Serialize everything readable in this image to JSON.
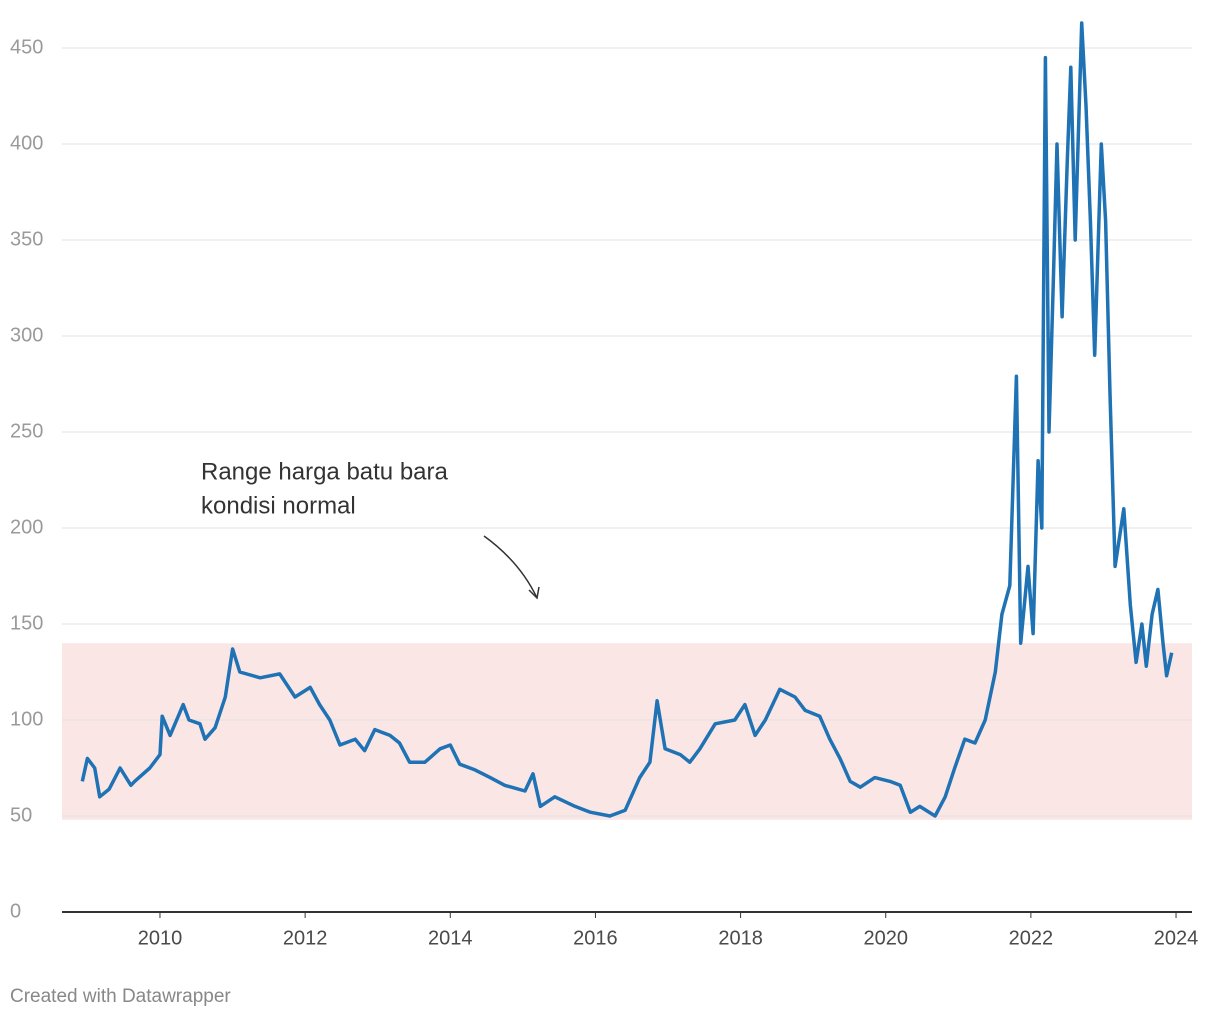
{
  "chart_data": {
    "type": "line",
    "annotation": [
      "Range harga batu bara",
      "kondisi normal"
    ],
    "footer": "Created with Datawrapper",
    "x": [
      2008.93,
      2009.0,
      2009.1,
      2009.17,
      2009.3,
      2009.45,
      2009.6,
      2009.65,
      2009.86,
      2010.0,
      2010.03,
      2010.14,
      2010.32,
      2010.4,
      2010.55,
      2010.62,
      2010.76,
      2010.9,
      2011.0,
      2011.1,
      2011.38,
      2011.65,
      2011.86,
      2012.07,
      2012.2,
      2012.34,
      2012.48,
      2012.69,
      2012.82,
      2012.96,
      2013.17,
      2013.3,
      2013.44,
      2013.65,
      2013.86,
      2014.0,
      2014.13,
      2014.34,
      2014.55,
      2014.75,
      2015.03,
      2015.14,
      2015.24,
      2015.44,
      2015.72,
      2015.93,
      2016.2,
      2016.41,
      2016.61,
      2016.75,
      2016.85,
      2016.96,
      2017.17,
      2017.3,
      2017.44,
      2017.65,
      2017.92,
      2018.06,
      2018.2,
      2018.34,
      2018.54,
      2018.75,
      2018.89,
      2019.09,
      2019.23,
      2019.37,
      2019.51,
      2019.65,
      2019.85,
      2020.06,
      2020.2,
      2020.34,
      2020.47,
      2020.68,
      2020.82,
      2020.95,
      2021.09,
      2021.23,
      2021.37,
      2021.51,
      2021.6,
      2021.71,
      2021.8,
      2021.86,
      2021.96,
      2022.03,
      2022.1,
      2022.15,
      2022.2,
      2022.25,
      2022.31,
      2022.36,
      2022.43,
      2022.5,
      2022.55,
      2022.61,
      2022.7,
      2022.76,
      2022.82,
      2022.88,
      2022.97,
      2023.03,
      2023.09,
      2023.16,
      2023.28,
      2023.37,
      2023.45,
      2023.53,
      2023.59,
      2023.67,
      2023.75,
      2023.82,
      2023.87,
      2023.94
    ],
    "values": [
      68,
      80,
      75,
      60,
      64,
      75,
      66,
      68,
      75,
      82,
      102,
      92,
      108,
      100,
      98,
      90,
      96,
      112,
      137,
      125,
      122,
      124,
      112,
      117,
      108,
      100,
      87,
      90,
      84,
      95,
      92,
      88,
      78,
      78,
      85,
      87,
      77,
      74,
      70,
      66,
      63,
      72,
      55,
      60,
      55,
      52,
      50,
      53,
      70,
      78,
      110,
      85,
      82,
      78,
      85,
      98,
      100,
      108,
      92,
      100,
      116,
      112,
      105,
      102,
      90,
      80,
      68,
      65,
      70,
      68,
      66,
      52,
      55,
      50,
      60,
      75,
      90,
      88,
      100,
      125,
      155,
      170,
      279,
      140,
      180,
      145,
      235,
      200,
      445,
      250,
      330,
      400,
      310,
      390,
      440,
      350,
      463,
      420,
      360,
      290,
      400,
      360,
      270,
      180,
      210,
      160,
      130,
      150,
      128,
      155,
      168,
      140,
      123,
      135
    ],
    "color": "#1f72b4",
    "shaded_range": [
      48,
      140
    ],
    "shaded_color": "#fbe6e6",
    "xlim": [
      2008.65,
      2024.22
    ],
    "xticks": [
      2010,
      2012,
      2014,
      2016,
      2018,
      2020,
      2022,
      2024
    ],
    "ylim": [
      0,
      470
    ],
    "yticks": [
      0,
      50,
      100,
      150,
      200,
      250,
      300,
      350,
      400,
      450
    ],
    "grid": true
  }
}
